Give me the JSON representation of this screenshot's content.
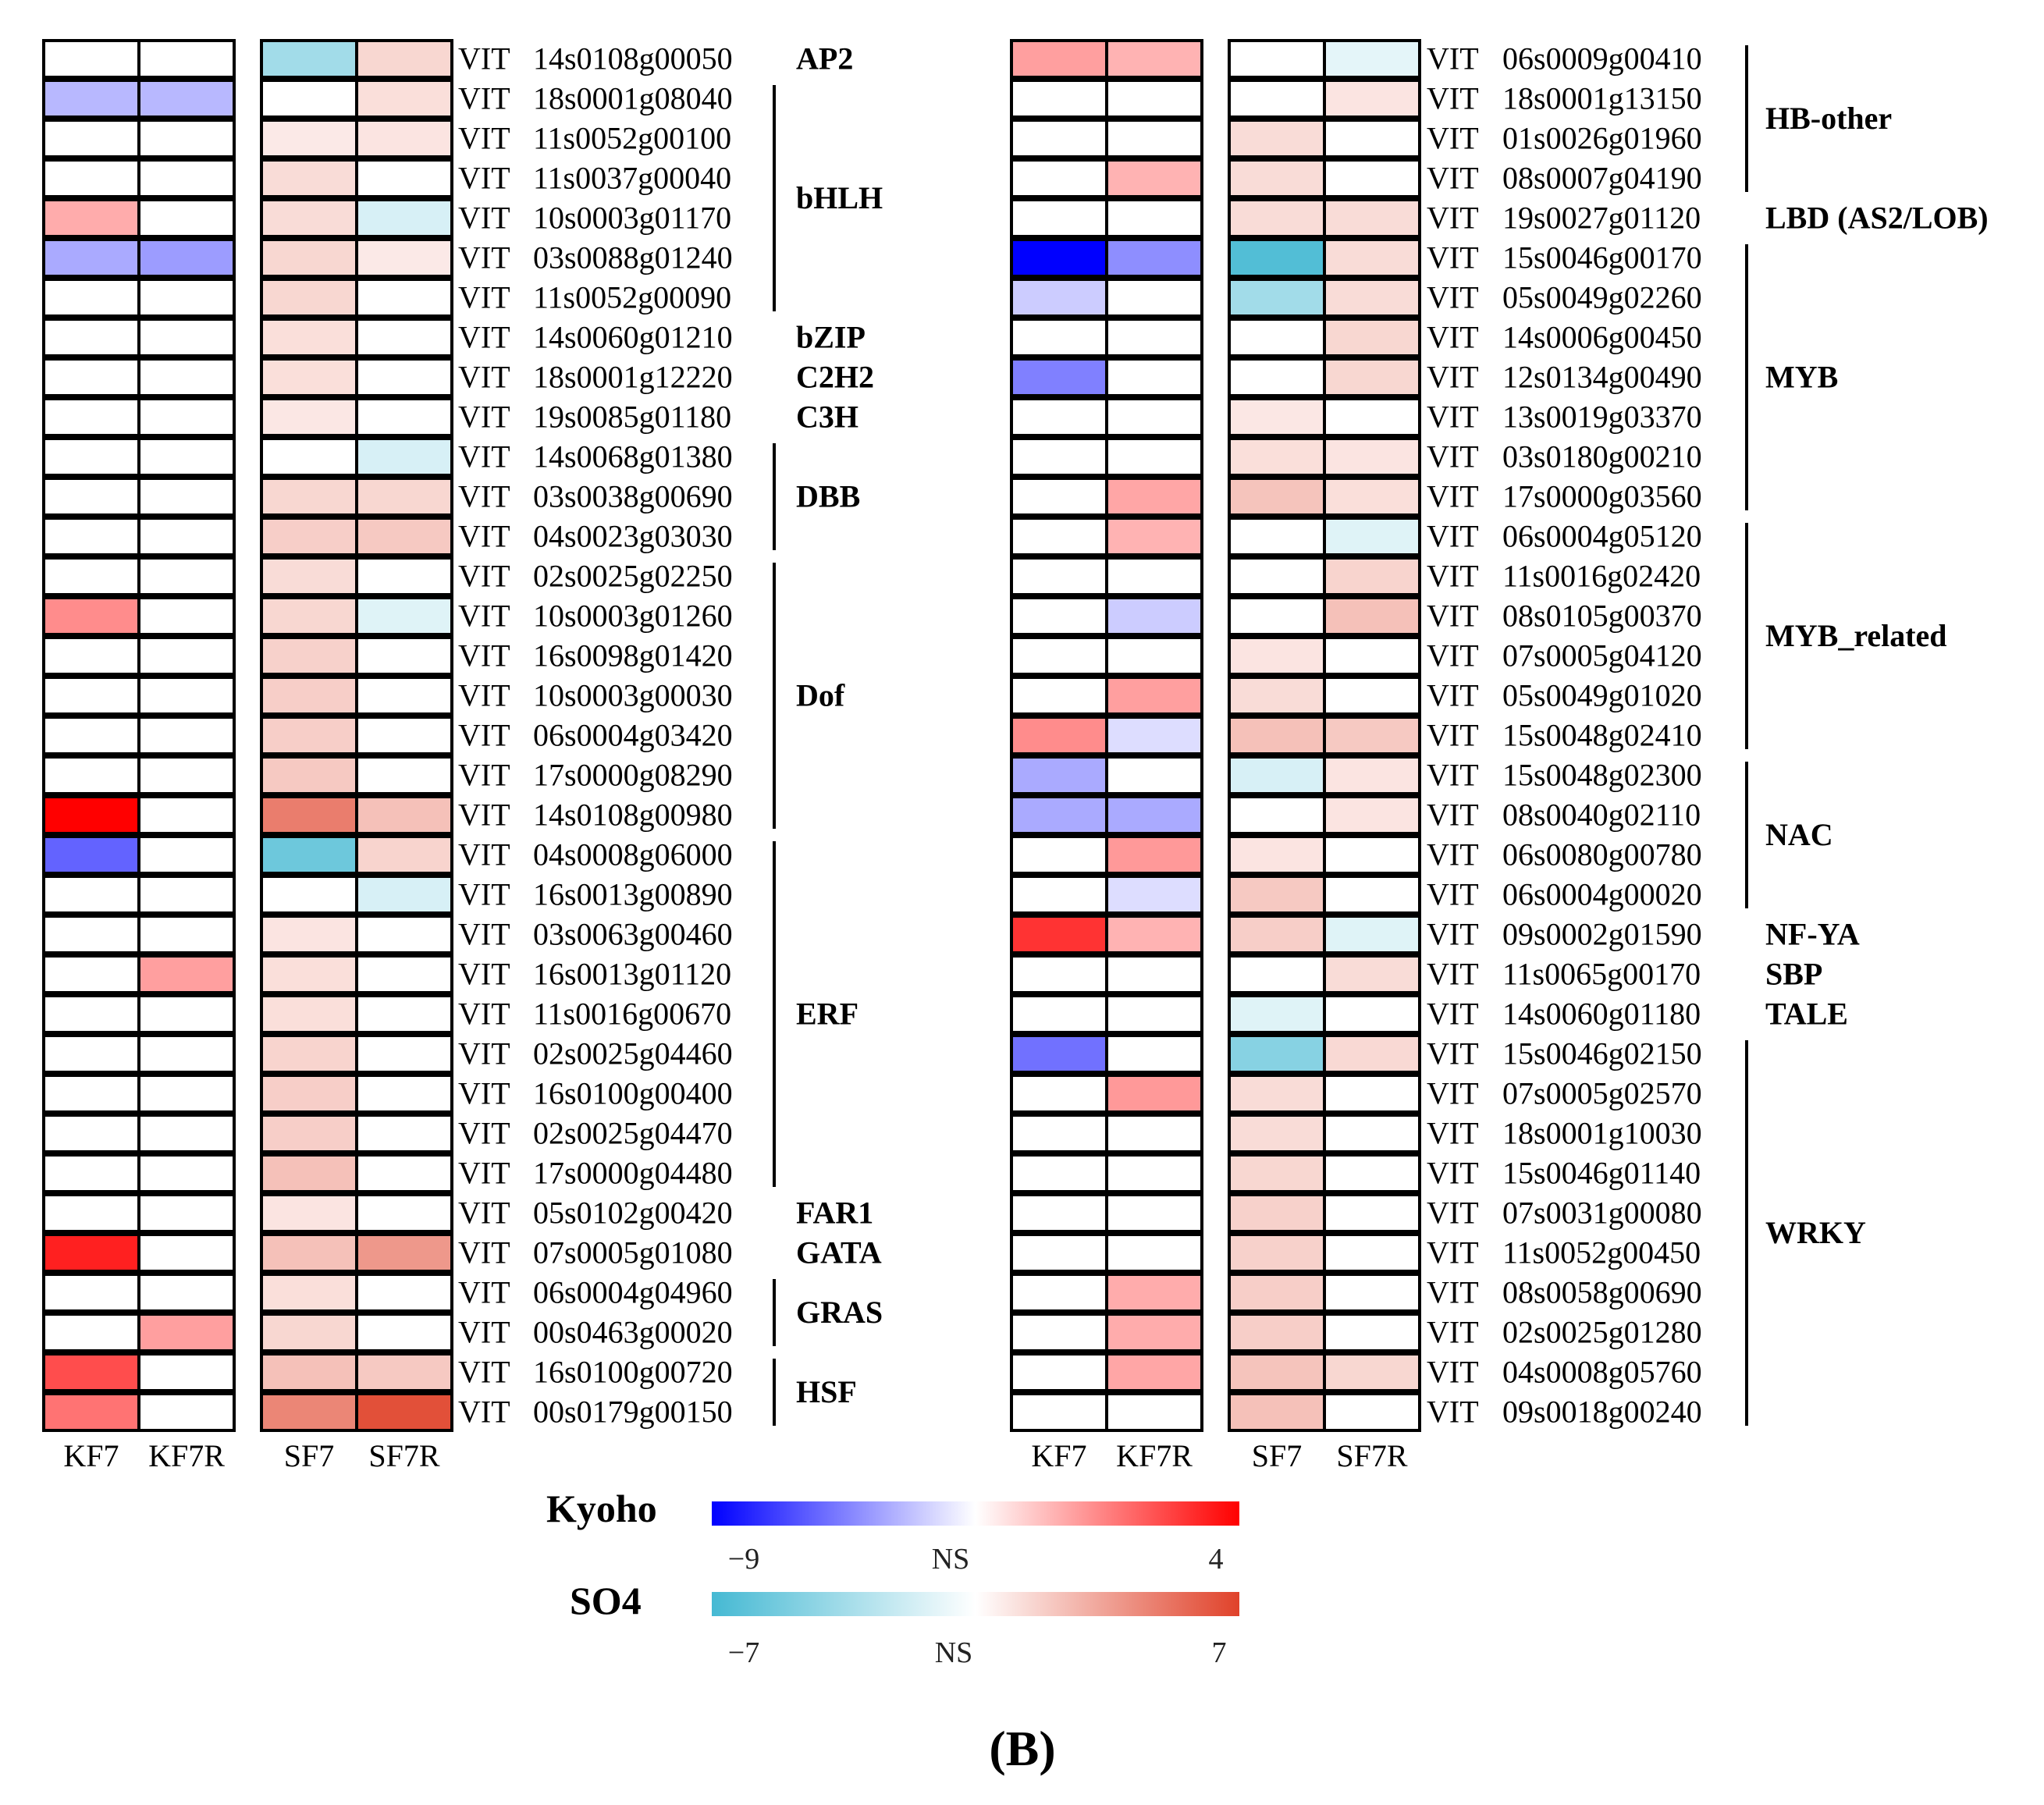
{
  "chart_data": {
    "type": "heatmap",
    "panel_label": "(B)",
    "gene_prefix": "VIT",
    "columns": {
      "kyoho": [
        "KF7",
        "KF7R"
      ],
      "so4": [
        "SF7",
        "SF7R"
      ]
    },
    "legend": {
      "kyoho": {
        "title": "Kyoho",
        "min": -9,
        "max": 4,
        "min_label": "−9",
        "mid_label": "NS",
        "max_label": "4",
        "low_color": "#0000ff",
        "high_color": "#ff0000"
      },
      "so4": {
        "title": "SO4",
        "min": -7,
        "max": 7,
        "min_label": "−7",
        "mid_label": "NS",
        "max_label": "7",
        "low_color": "#45b9d3",
        "high_color": "#e0422a"
      }
    },
    "left": {
      "rows": [
        {
          "gene": "14s0108g00050",
          "KF7": 0,
          "KF7R": 0,
          "SF7": -3.5,
          "SF7R": 1.5
        },
        {
          "gene": "18s0001g08040",
          "KF7": -2.5,
          "KF7R": -2.5,
          "SF7": 0,
          "SF7R": 1.2
        },
        {
          "gene": "11s0052g00100",
          "KF7": 0,
          "KF7R": 0,
          "SF7": 0.8,
          "SF7R": 1.0
        },
        {
          "gene": "11s0037g00040",
          "KF7": 0,
          "KF7R": 0,
          "SF7": 1.3,
          "SF7R": 0
        },
        {
          "gene": "10s0003g01170",
          "KF7": 1.3,
          "KF7R": 0,
          "SF7": 1.3,
          "SF7R": -1.5
        },
        {
          "gene": "03s0088g01240",
          "KF7": -3.0,
          "KF7R": -3.5,
          "SF7": 1.5,
          "SF7R": 0.8
        },
        {
          "gene": "11s0052g00090",
          "KF7": 0,
          "KF7R": 0,
          "SF7": 1.5,
          "SF7R": 0
        },
        {
          "gene": "14s0060g01210",
          "KF7": 0,
          "KF7R": 0,
          "SF7": 1.2,
          "SF7R": 0
        },
        {
          "gene": "18s0001g12220",
          "KF7": 0,
          "KF7R": 0,
          "SF7": 1.2,
          "SF7R": 0
        },
        {
          "gene": "19s0085g01180",
          "KF7": 0,
          "KF7R": 0,
          "SF7": 0.9,
          "SF7R": 0
        },
        {
          "gene": "14s0068g01380",
          "KF7": 0,
          "KF7R": 0,
          "SF7": 0,
          "SF7R": -1.5
        },
        {
          "gene": "03s0038g00690",
          "KF7": 0,
          "KF7R": 0,
          "SF7": 1.5,
          "SF7R": 1.5
        },
        {
          "gene": "04s0023g03030",
          "KF7": 0,
          "KF7R": 0,
          "SF7": 1.8,
          "SF7R": 2.0
        },
        {
          "gene": "02s0025g02250",
          "KF7": 0,
          "KF7R": 0,
          "SF7": 1.3,
          "SF7R": 0
        },
        {
          "gene": "10s0003g01260",
          "KF7": 1.8,
          "KF7R": 0,
          "SF7": 1.5,
          "SF7R": -1.2
        },
        {
          "gene": "16s0098g01420",
          "KF7": 0,
          "KF7R": 0,
          "SF7": 1.7,
          "SF7R": 0
        },
        {
          "gene": "10s0003g00030",
          "KF7": 0,
          "KF7R": 0,
          "SF7": 1.8,
          "SF7R": 0
        },
        {
          "gene": "06s0004g03420",
          "KF7": 0,
          "KF7R": 0,
          "SF7": 1.8,
          "SF7R": 0
        },
        {
          "gene": "17s0000g08290",
          "KF7": 0,
          "KF7R": 0,
          "SF7": 2.0,
          "SF7R": 0
        },
        {
          "gene": "14s0108g00980",
          "KF7": 4.0,
          "KF7R": 0,
          "SF7": 4.8,
          "SF7R": 2.3
        },
        {
          "gene": "04s0008g06000",
          "KF7": -5.5,
          "KF7R": 0,
          "SF7": -5.5,
          "SF7R": 1.6
        },
        {
          "gene": "16s0013g00890",
          "KF7": 0,
          "KF7R": 0,
          "SF7": 0,
          "SF7R": -1.5
        },
        {
          "gene": "03s0063g00460",
          "KF7": 0,
          "KF7R": 0,
          "SF7": 1.0,
          "SF7R": 0
        },
        {
          "gene": "16s0013g01120",
          "KF7": 0,
          "KF7R": 1.5,
          "SF7": 1.2,
          "SF7R": 0
        },
        {
          "gene": "11s0016g00670",
          "KF7": 0,
          "KF7R": 0,
          "SF7": 1.2,
          "SF7R": 0
        },
        {
          "gene": "02s0025g04460",
          "KF7": 0,
          "KF7R": 0,
          "SF7": 1.6,
          "SF7R": 0
        },
        {
          "gene": "16s0100g00400",
          "KF7": 0,
          "KF7R": 0,
          "SF7": 1.8,
          "SF7R": 0
        },
        {
          "gene": "02s0025g04470",
          "KF7": 0,
          "KF7R": 0,
          "SF7": 1.8,
          "SF7R": 0
        },
        {
          "gene": "17s0000g04480",
          "KF7": 0,
          "KF7R": 0,
          "SF7": 2.3,
          "SF7R": 0
        },
        {
          "gene": "05s0102g00420",
          "KF7": 0,
          "KF7R": 0,
          "SF7": 1.0,
          "SF7R": 0
        },
        {
          "gene": "07s0005g01080",
          "KF7": 3.5,
          "KF7R": 0,
          "SF7": 2.3,
          "SF7R": 3.8
        },
        {
          "gene": "06s0004g04960",
          "KF7": 0,
          "KF7R": 0,
          "SF7": 1.2,
          "SF7R": 0
        },
        {
          "gene": "00s0463g00020",
          "KF7": 0,
          "KF7R": 1.5,
          "SF7": 1.5,
          "SF7R": 0
        },
        {
          "gene": "16s0100g00720",
          "KF7": 2.8,
          "KF7R": 0,
          "SF7": 2.3,
          "SF7R": 2.0
        },
        {
          "gene": "00s0179g00150",
          "KF7": 2.2,
          "KF7R": 0,
          "SF7": 4.5,
          "SF7R": 6.5
        }
      ],
      "families": [
        {
          "name": "AP2",
          "start": 0,
          "end": 0
        },
        {
          "name": "bHLH",
          "start": 1,
          "end": 6
        },
        {
          "name": "bZIP",
          "start": 7,
          "end": 7
        },
        {
          "name": "C2H2",
          "start": 8,
          "end": 8
        },
        {
          "name": "C3H",
          "start": 9,
          "end": 9
        },
        {
          "name": "DBB",
          "start": 10,
          "end": 12
        },
        {
          "name": "Dof",
          "start": 13,
          "end": 19
        },
        {
          "name": "ERF",
          "start": 20,
          "end": 28
        },
        {
          "name": "FAR1",
          "start": 29,
          "end": 29
        },
        {
          "name": "GATA",
          "start": 30,
          "end": 30
        },
        {
          "name": "GRAS",
          "start": 31,
          "end": 32
        },
        {
          "name": "HSF",
          "start": 33,
          "end": 34
        }
      ]
    },
    "right": {
      "rows": [
        {
          "gene": "06s0009g00410",
          "KF7": 1.5,
          "KF7R": 1.2,
          "SF7": 0,
          "SF7R": -1.0
        },
        {
          "gene": "18s0001g13150",
          "KF7": 0,
          "KF7R": 0,
          "SF7": 0,
          "SF7R": 1.0
        },
        {
          "gene": "01s0026g01960",
          "KF7": 0,
          "KF7R": 0,
          "SF7": 1.3,
          "SF7R": 0
        },
        {
          "gene": "08s0007g04190",
          "KF7": 0,
          "KF7R": 1.2,
          "SF7": 1.3,
          "SF7R": 0
        },
        {
          "gene": "19s0027g01120",
          "KF7": 0,
          "KF7R": 0,
          "SF7": 1.3,
          "SF7R": 1.3
        },
        {
          "gene": "15s0046g00170",
          "KF7": -9.0,
          "KF7R": -4.0,
          "SF7": -6.5,
          "SF7R": 1.3
        },
        {
          "gene": "05s0049g02260",
          "KF7": -1.8,
          "KF7R": 0,
          "SF7": -3.5,
          "SF7R": 1.3
        },
        {
          "gene": "14s0006g00450",
          "KF7": 0,
          "KF7R": 0,
          "SF7": 0,
          "SF7R": 1.5
        },
        {
          "gene": "12s0134g00490",
          "KF7": -4.5,
          "KF7R": 0,
          "SF7": 0,
          "SF7R": 1.5
        },
        {
          "gene": "13s0019g03370",
          "KF7": 0,
          "KF7R": 0,
          "SF7": 0.9,
          "SF7R": 0
        },
        {
          "gene": "03s0180g00210",
          "KF7": 0,
          "KF7R": 0,
          "SF7": 1.2,
          "SF7R": 1.0
        },
        {
          "gene": "17s0000g03560",
          "KF7": 0,
          "KF7R": 1.4,
          "SF7": 2.2,
          "SF7R": 1.2
        },
        {
          "gene": "06s0004g05120",
          "KF7": 0,
          "KF7R": 1.2,
          "SF7": 0,
          "SF7R": -1.2
        },
        {
          "gene": "11s0016g02420",
          "KF7": 0,
          "KF7R": 0,
          "SF7": 0,
          "SF7R": 1.6
        },
        {
          "gene": "08s0105g00370",
          "KF7": 0,
          "KF7R": -1.8,
          "SF7": 0,
          "SF7R": 2.3
        },
        {
          "gene": "07s0005g04120",
          "KF7": 0,
          "KF7R": 0,
          "SF7": 1.0,
          "SF7R": 0
        },
        {
          "gene": "05s0049g01020",
          "KF7": 0,
          "KF7R": 1.5,
          "SF7": 1.3,
          "SF7R": 0
        },
        {
          "gene": "15s0048g02410",
          "KF7": 1.8,
          "KF7R": -1.2,
          "SF7": 2.3,
          "SF7R": 2.0
        },
        {
          "gene": "15s0048g02300",
          "KF7": -3.0,
          "KF7R": 0,
          "SF7": -1.5,
          "SF7R": 1.0
        },
        {
          "gene": "08s0040g02110",
          "KF7": -3.0,
          "KF7R": -3.0,
          "SF7": 0,
          "SF7R": 1.0
        },
        {
          "gene": "06s0080g00780",
          "KF7": 0,
          "KF7R": 1.6,
          "SF7": 1.0,
          "SF7R": 0
        },
        {
          "gene": "06s0004g00020",
          "KF7": 0,
          "KF7R": -1.2,
          "SF7": 2.0,
          "SF7R": 0
        },
        {
          "gene": "09s0002g01590",
          "KF7": 3.2,
          "KF7R": 1.2,
          "SF7": 1.8,
          "SF7R": -1.2
        },
        {
          "gene": "11s0065g00170",
          "KF7": 0,
          "KF7R": 0,
          "SF7": 0,
          "SF7R": 1.3
        },
        {
          "gene": "14s0060g01180",
          "KF7": 0,
          "KF7R": 0,
          "SF7": -1.2,
          "SF7R": 0
        },
        {
          "gene": "15s0046g02150",
          "KF7": -5.0,
          "KF7R": 0,
          "SF7": -4.5,
          "SF7R": 1.4
        },
        {
          "gene": "07s0005g02570",
          "KF7": 0,
          "KF7R": 1.6,
          "SF7": 1.3,
          "SF7R": 0
        },
        {
          "gene": "18s0001g10030",
          "KF7": 0,
          "KF7R": 0,
          "SF7": 1.3,
          "SF7R": 0
        },
        {
          "gene": "15s0046g01140",
          "KF7": 0,
          "KF7R": 0,
          "SF7": 1.5,
          "SF7R": 0
        },
        {
          "gene": "07s0031g00080",
          "KF7": 0,
          "KF7R": 0,
          "SF7": 1.7,
          "SF7R": 0
        },
        {
          "gene": "11s0052g00450",
          "KF7": 0,
          "KF7R": 0,
          "SF7": 1.7,
          "SF7R": 0
        },
        {
          "gene": "08s0058g00690",
          "KF7": 0,
          "KF7R": 1.3,
          "SF7": 1.8,
          "SF7R": 0
        },
        {
          "gene": "02s0025g01280",
          "KF7": 0,
          "KF7R": 1.3,
          "SF7": 1.8,
          "SF7R": 0
        },
        {
          "gene": "04s0008g05760",
          "KF7": 0,
          "KF7R": 1.4,
          "SF7": 2.2,
          "SF7R": 1.5
        },
        {
          "gene": "09s0018g00240",
          "KF7": 0,
          "KF7R": 0,
          "SF7": 2.3,
          "SF7R": 0
        }
      ],
      "families": [
        {
          "name": "HB-other",
          "start": 0,
          "end": 3
        },
        {
          "name": "LBD (AS2/LOB)",
          "start": 4,
          "end": 4
        },
        {
          "name": "MYB",
          "start": 5,
          "end": 11
        },
        {
          "name": "MYB_related",
          "start": 12,
          "end": 17
        },
        {
          "name": "NAC",
          "start": 18,
          "end": 21
        },
        {
          "name": "NF-YA",
          "start": 22,
          "end": 22
        },
        {
          "name": "SBP",
          "start": 23,
          "end": 23
        },
        {
          "name": "TALE",
          "start": 24,
          "end": 24
        },
        {
          "name": "WRKY",
          "start": 25,
          "end": 34
        }
      ]
    }
  }
}
